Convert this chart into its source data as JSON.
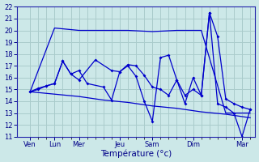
{
  "background_color": "#cce8e8",
  "grid_color": "#aacccc",
  "line_color": "#0000cc",
  "xlabel": "Température (°c)",
  "xlabel_fontsize": 7.5,
  "ylim": [
    11,
    22
  ],
  "yticks": [
    11,
    12,
    13,
    14,
    15,
    16,
    17,
    18,
    19,
    20,
    21,
    22
  ],
  "xlim": [
    -0.3,
    14.3
  ],
  "xtick_positions": [
    0.5,
    2.0,
    3.5,
    6.0,
    8.0,
    10.5,
    13.5
  ],
  "xtick_labels": [
    "Ven",
    "Lun",
    "Mer",
    "Jeu",
    "Sam",
    "Dim",
    "Mar"
  ],
  "xtick_minor_positions": [
    0.5,
    1.0,
    1.5,
    2.0,
    2.5,
    3.0,
    3.5,
    4.0,
    4.5,
    5.0,
    5.5,
    6.0,
    6.5,
    7.0,
    7.5,
    8.0,
    8.5,
    9.0,
    9.5,
    10.0,
    10.5,
    11.0,
    11.5,
    12.0,
    12.5,
    13.0,
    13.5,
    14.0
  ],
  "s1_x": [
    0.5,
    2.0,
    3.5,
    5.0,
    6.5,
    8.0,
    9.5,
    11.0,
    12.5,
    14.0
  ],
  "s1_y": [
    14.8,
    20.2,
    20.0,
    20.0,
    20.0,
    19.9,
    20.0,
    20.0,
    13.0,
    13.0
  ],
  "s2_x": [
    0.5,
    1.0,
    1.5,
    2.0,
    2.5,
    3.0,
    3.5,
    4.5,
    5.5,
    6.0,
    6.5,
    7.0,
    7.5,
    8.0,
    8.5,
    9.0,
    9.5,
    10.0,
    10.5,
    11.0,
    11.5,
    12.0,
    12.5,
    13.0,
    13.5,
    14.0
  ],
  "s2_y": [
    14.8,
    15.1,
    15.3,
    15.5,
    17.4,
    16.3,
    15.8,
    17.5,
    16.6,
    16.5,
    17.0,
    16.1,
    14.0,
    12.3,
    17.7,
    17.9,
    15.8,
    13.8,
    16.0,
    14.5,
    21.5,
    13.8,
    13.5,
    13.0,
    11.0,
    13.3
  ],
  "s3_x": [
    0.5,
    1.0,
    1.5,
    2.0,
    2.5,
    3.0,
    3.5,
    4.0,
    5.0,
    5.5,
    6.0,
    6.5,
    7.0,
    7.5,
    8.0,
    8.5,
    9.0,
    9.5,
    10.0,
    10.5,
    11.0,
    11.5,
    12.0,
    12.5,
    13.0,
    13.5,
    14.0
  ],
  "s3_y": [
    14.8,
    15.0,
    15.3,
    15.5,
    17.4,
    16.3,
    16.6,
    15.5,
    15.2,
    14.1,
    16.5,
    17.1,
    17.0,
    16.2,
    15.2,
    15.0,
    14.5,
    15.8,
    14.5,
    15.0,
    14.5,
    21.5,
    19.5,
    14.2,
    13.8,
    13.5,
    13.3
  ],
  "s4_x": [
    0.5,
    2.0,
    3.5,
    5.0,
    6.5,
    8.0,
    9.5,
    11.0,
    12.5,
    14.0
  ],
  "s4_y": [
    14.8,
    14.6,
    14.4,
    14.1,
    13.9,
    13.6,
    13.4,
    13.1,
    12.9,
    12.6
  ]
}
